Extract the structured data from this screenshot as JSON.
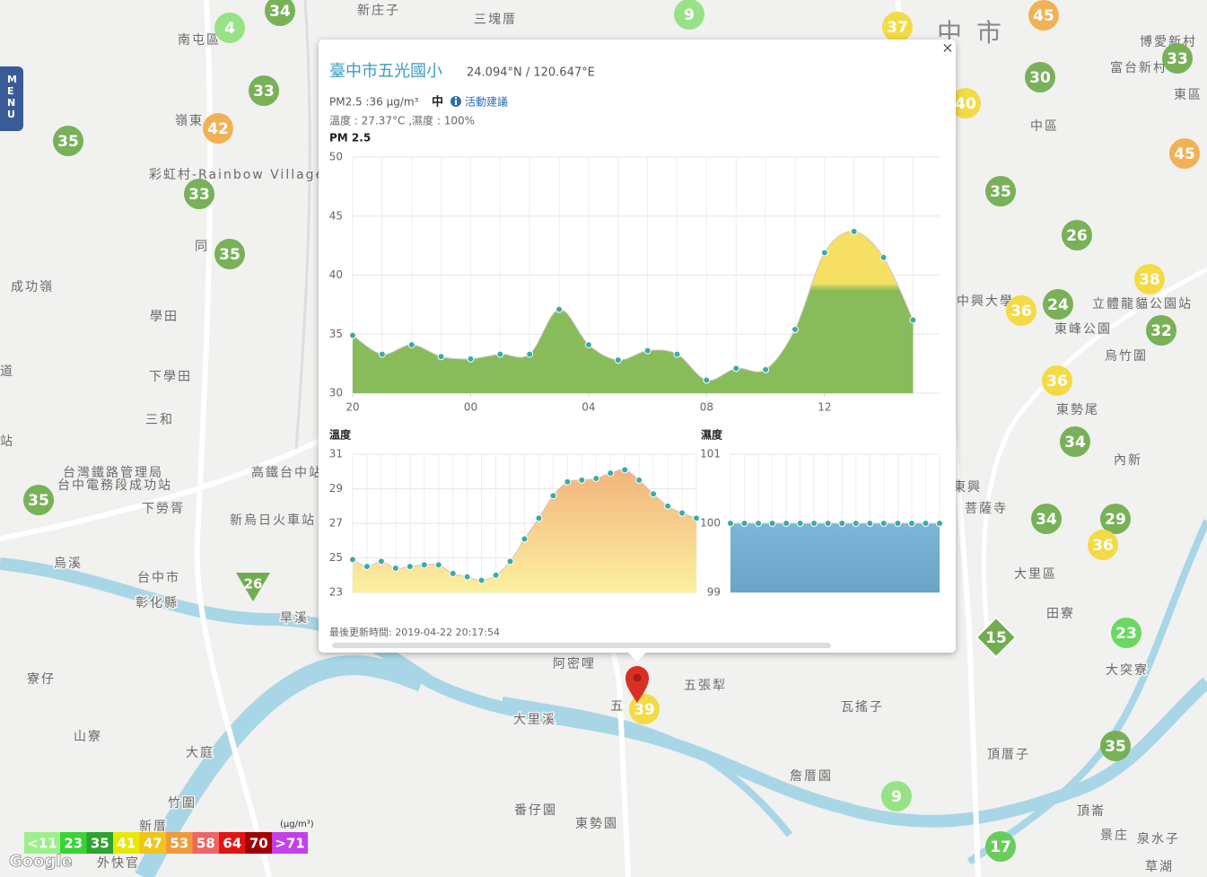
{
  "menu": "MENU",
  "attribution": "Google",
  "map": {
    "places": [
      "新庄子",
      "三塊厝",
      "南屯區",
      "中",
      "市",
      "博愛新村",
      "富台新村",
      "東區",
      "中區",
      "嶺東",
      "彩虹村-Rainbow Village",
      "同",
      "成功嶺",
      "學田",
      "下學田",
      "三和",
      "台灣鐵路管理局",
      "台中電務段成功站",
      "高鐵台中站",
      "下勞胥",
      "新烏日火車站",
      "台中市",
      "彰化縣",
      "寮仔",
      "山寮",
      "大庭",
      "竹圍",
      "新厝",
      "外快官",
      "阿密哩",
      "五張犁",
      "瓦搖子",
      "大里區",
      "田寮",
      "大突寮",
      "頂厝子",
      "詹厝園",
      "番仔園",
      "東勢園",
      "頂崙",
      "景庄",
      "泉水子",
      "草湖",
      "東勢尾",
      "內新",
      "東興",
      "烏竹圍",
      "東峰公園",
      "立體龍貓公園站",
      "大里溪",
      "烏溪",
      "旱溪",
      "五",
      "中興大學",
      "菩薩寺",
      "道",
      "站"
    ],
    "markers": [
      {
        "value": 4,
        "color": "#92e07f"
      },
      {
        "value": 34,
        "color": "#71ad4f"
      },
      {
        "value": 33,
        "color": "#71ad4f"
      },
      {
        "value": 42,
        "color": "#f0ad4e"
      },
      {
        "value": 35,
        "color": "#71ad4f"
      },
      {
        "value": 33,
        "color": "#71ad4f"
      },
      {
        "value": 35,
        "color": "#71ad4f"
      },
      {
        "value": 9,
        "color": "#92e07f"
      },
      {
        "value": 37,
        "color": "#f3d83b"
      },
      {
        "value": 45,
        "color": "#f0ad4e"
      },
      {
        "value": 33,
        "color": "#71ad4f"
      },
      {
        "value": 30,
        "color": "#71ad4f"
      },
      {
        "value": 40,
        "color": "#f3d83b"
      },
      {
        "value": 45,
        "color": "#f0ad4e"
      },
      {
        "value": 35,
        "color": "#71ad4f"
      },
      {
        "value": 26,
        "color": "#71ad4f"
      },
      {
        "value": 38,
        "color": "#f3d83b"
      },
      {
        "value": 36,
        "color": "#f3d83b"
      },
      {
        "value": 24,
        "color": "#71ad4f"
      },
      {
        "value": 32,
        "color": "#71ad4f"
      },
      {
        "value": 36,
        "color": "#f3d83b"
      },
      {
        "value": 34,
        "color": "#71ad4f"
      },
      {
        "value": 34,
        "color": "#71ad4f"
      },
      {
        "value": 29,
        "color": "#71ad4f"
      },
      {
        "value": 36,
        "color": "#f3d83b"
      },
      {
        "value": 35,
        "color": "#71ad4f"
      },
      {
        "value": 23,
        "color": "#62d65a"
      },
      {
        "value": 35,
        "color": "#71ad4f"
      },
      {
        "value": 9,
        "color": "#92e07f"
      },
      {
        "value": 17,
        "color": "#62c955"
      },
      {
        "value": 39,
        "color": "#f3d83b"
      },
      {
        "value": 26,
        "color": "#71ad4f",
        "shape": "triangle"
      },
      {
        "value": 15,
        "color": "#71ad4f",
        "shape": "diamond"
      }
    ]
  },
  "legend": {
    "unit": "(μg/m³)",
    "items": [
      {
        "label": "<11",
        "color": "#9cf08a"
      },
      {
        "label": "23",
        "color": "#36d436"
      },
      {
        "label": "35",
        "color": "#2ea32e"
      },
      {
        "label": "41",
        "color": "#e8e800"
      },
      {
        "label": "47",
        "color": "#f0c419"
      },
      {
        "label": "53",
        "color": "#f09a3a"
      },
      {
        "label": "58",
        "color": "#f06464"
      },
      {
        "label": "64",
        "color": "#e01414"
      },
      {
        "label": "70",
        "color": "#a00000"
      },
      {
        "label": ">71",
        "color": "#c440e8"
      }
    ]
  },
  "popup": {
    "title": "臺中市五光國小",
    "coords": "24.094°N / 120.647°E",
    "pm_line": "PM2.5 :36 μg/m³",
    "level": "中",
    "advice": "活動建議",
    "weather": "溫度 : 27.37°C ,濕度 : 100%",
    "updated": "最後更新時間: 2019-04-22 20:17:54",
    "close": "×"
  },
  "chart_data": [
    {
      "type": "area",
      "title": "PM 2.5",
      "x": [
        0,
        1,
        2,
        3,
        4,
        5,
        6,
        7,
        8,
        9,
        10,
        11,
        12,
        13,
        14,
        15,
        16,
        17,
        18,
        19
      ],
      "values": [
        34.9,
        33.3,
        34.1,
        33.1,
        32.9,
        33.3,
        33.3,
        37.1,
        34.1,
        32.8,
        33.6,
        33.3,
        31.1,
        32.1,
        32.0,
        35.4,
        41.9,
        43.7,
        41.5,
        36.2
      ],
      "xlim": [
        0,
        19.9
      ],
      "xticks": [
        {
          "value": 0,
          "label": "20"
        },
        {
          "value": 4,
          "label": "00"
        },
        {
          "value": 8,
          "label": "04"
        },
        {
          "value": 12,
          "label": "08"
        },
        {
          "value": 16,
          "label": "12"
        }
      ],
      "ylim": [
        30,
        50
      ],
      "yticks": [
        30,
        35,
        40,
        45,
        50
      ],
      "color": "#88bb5a",
      "high_color": "#f6e064",
      "color_break": 39,
      "grid": true
    },
    {
      "type": "area",
      "title": "溫度",
      "x": [
        0,
        1,
        2,
        3,
        4,
        5,
        6,
        7,
        8,
        9,
        10,
        11,
        12,
        13,
        14,
        15,
        16,
        17,
        18,
        19,
        20,
        21,
        22,
        23,
        24
      ],
      "values": [
        24.9,
        24.5,
        24.8,
        24.4,
        24.5,
        24.6,
        24.6,
        24.1,
        23.9,
        23.7,
        24.0,
        24.8,
        26.1,
        27.3,
        28.6,
        29.4,
        29.5,
        29.6,
        29.9,
        30.1,
        29.5,
        28.7,
        28.0,
        27.6,
        27.3
      ],
      "xlim": [
        0,
        24
      ],
      "ylim": [
        23,
        31
      ],
      "yticks": [
        23,
        25,
        27,
        29,
        31
      ],
      "color": "#f2b47c",
      "low_color": "#fcf0a0",
      "grid": true
    },
    {
      "type": "area",
      "title": "濕度",
      "x": [
        0,
        1,
        2,
        3,
        4,
        5,
        6,
        7,
        8,
        9,
        10,
        11,
        12,
        13,
        14,
        15
      ],
      "values": [
        100,
        100,
        100,
        100,
        100,
        100,
        100,
        100,
        100,
        100,
        100,
        100,
        100,
        100,
        100,
        100
      ],
      "xlim": [
        0,
        15
      ],
      "ylim": [
        99,
        101
      ],
      "yticks": [
        99,
        100,
        101
      ],
      "color": "#7ab7d9",
      "low_color": "#6aa3c6",
      "grid": true
    }
  ]
}
